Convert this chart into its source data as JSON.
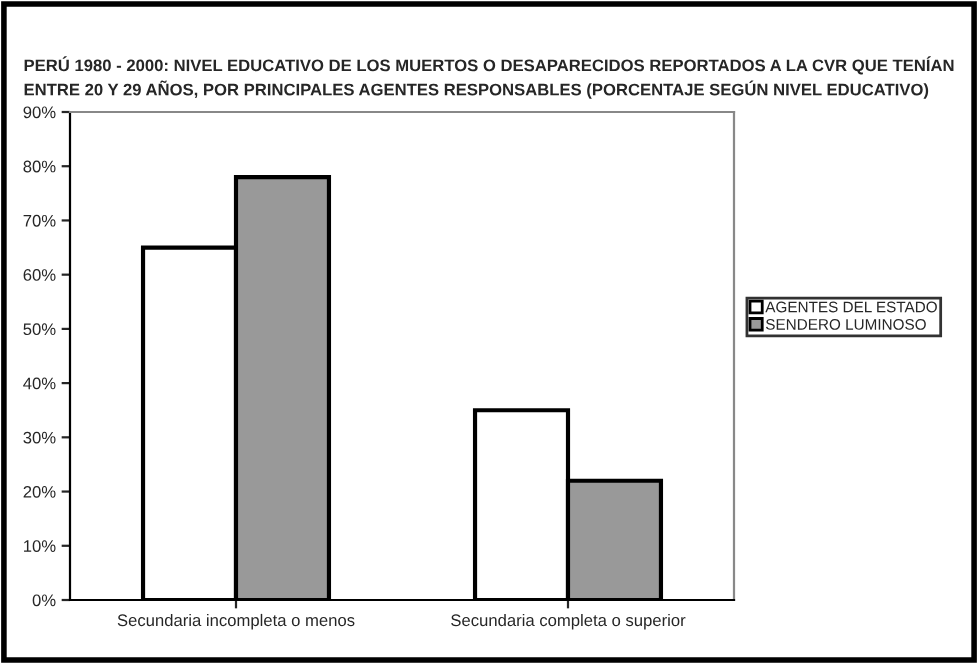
{
  "chart_data": {
    "type": "bar",
    "title": "PERÚ 1980 - 2000: NIVEL EDUCATIVO DE LOS MUERTOS O DESAPARECIDOS REPORTADOS A LA CVR QUE TENÍAN\nENTRE 20 Y 29 AÑOS, POR PRINCIPALES AGENTES RESPONSABLES (PORCENTAJE SEGÚN NIVEL EDUCATIVO)",
    "categories": [
      "Secundaria incompleta o menos",
      "Secundaria completa o superior"
    ],
    "series": [
      {
        "name": "AGENTES DEL ESTADO",
        "color": "#ffffff",
        "values": [
          65,
          35
        ]
      },
      {
        "name": "SENDERO LUMINOSO",
        "color": "#999999",
        "values": [
          78,
          22
        ]
      }
    ],
    "ylim": [
      0,
      90
    ],
    "yticks": [
      {
        "value": 0,
        "label": "0%"
      },
      {
        "value": 10,
        "label": "10%"
      },
      {
        "value": 20,
        "label": "20%"
      },
      {
        "value": 30,
        "label": "30%"
      },
      {
        "value": 40,
        "label": "40%"
      },
      {
        "value": 50,
        "label": "50%"
      },
      {
        "value": 60,
        "label": "60%"
      },
      {
        "value": 70,
        "label": "70%"
      },
      {
        "value": 80,
        "label": "80%"
      },
      {
        "value": 90,
        "label": "90%"
      }
    ],
    "grid": false,
    "legend": "right"
  }
}
